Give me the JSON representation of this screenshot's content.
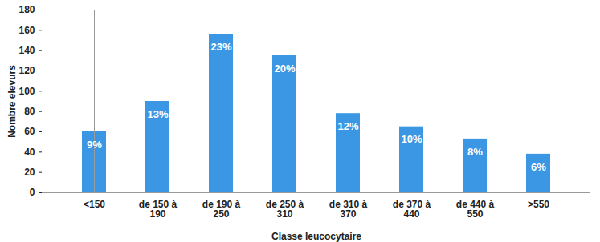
{
  "chart_data": {
    "type": "bar",
    "x_label": "Classe leucocytaire",
    "y_label": "Nombre elevurs",
    "categories": [
      "<150",
      "de 150 à 190",
      "de 190 à 250",
      "de 250 à 310",
      "de 310 à 370",
      "de 370 à 440",
      "de 440 à 550",
      ">550"
    ],
    "values": [
      60,
      90,
      156,
      135,
      78,
      65,
      53,
      38
    ],
    "percent_labels": [
      "9%",
      "13%",
      "23%",
      "20%",
      "12%",
      "10%",
      "8%",
      "6%"
    ],
    "color": "#3b97e3",
    "ylim": [
      0,
      180
    ],
    "yticks": [
      0,
      20,
      40,
      60,
      80,
      100,
      120,
      140,
      160,
      180
    ],
    "grid": false
  }
}
